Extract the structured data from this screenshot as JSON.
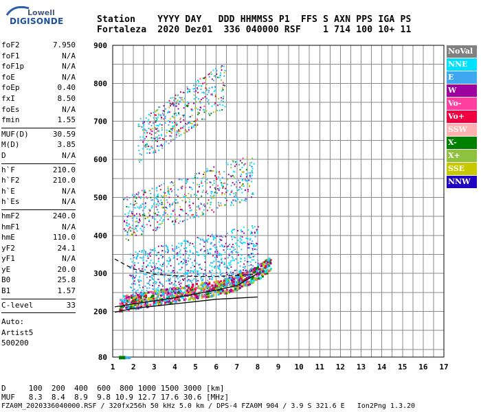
{
  "logo": {
    "line1": "Lowell",
    "line2": "DIGISONDE"
  },
  "header": {
    "labels": "Station    YYYY DAY   DDD HHMMSS P1  FFS S AXN PPS IGA PS",
    "values": "Fortaleza  2020 Dez01  336 040000 RSF    1 714 100 10+ 11"
  },
  "params": {
    "group1": [
      {
        "name": "foF2",
        "value": "7.950"
      },
      {
        "name": "foF1",
        "value": "N/A"
      },
      {
        "name": "foF1p",
        "value": "N/A"
      },
      {
        "name": "foE",
        "value": "N/A"
      },
      {
        "name": "foEp",
        "value": "0.40"
      },
      {
        "name": "fxI",
        "value": "8.50"
      },
      {
        "name": "foEs",
        "value": "N/A"
      },
      {
        "name": "fmin",
        "value": "1.55"
      }
    ],
    "group2": [
      {
        "name": "MUF(D)",
        "value": "30.59"
      },
      {
        "name": "M(D)",
        "value": "3.85"
      },
      {
        "name": "D",
        "value": "N/A"
      }
    ],
    "group3": [
      {
        "name": "h`F",
        "value": "210.0"
      },
      {
        "name": "h`F2",
        "value": "210.0"
      },
      {
        "name": "h`E",
        "value": "N/A"
      },
      {
        "name": "h`Es",
        "value": "N/A"
      }
    ],
    "group4": [
      {
        "name": "hmF2",
        "value": "240.0"
      },
      {
        "name": "hmF1",
        "value": "N/A"
      },
      {
        "name": "hmE",
        "value": "110.0"
      },
      {
        "name": "yF2",
        "value": "24.1"
      },
      {
        "name": "yF1",
        "value": "N/A"
      },
      {
        "name": "yE",
        "value": "20.0"
      },
      {
        "name": "B0",
        "value": "25.8"
      },
      {
        "name": "B1",
        "value": "1.57"
      }
    ],
    "clevel": {
      "name": "C-level",
      "value": "33"
    },
    "auto": [
      "Auto:",
      "Artist5",
      "500200"
    ]
  },
  "legend": [
    {
      "label": "NoVal",
      "color": "#808080"
    },
    {
      "label": "NNE",
      "color": "#00e0ff"
    },
    {
      "label": "E",
      "color": "#40a8f0"
    },
    {
      "label": "W",
      "color": "#a000a0"
    },
    {
      "label": "Vo-",
      "color": "#ff40a0"
    },
    {
      "label": "Vo+",
      "color": "#f00040"
    },
    {
      "label": "SSW",
      "color": "#ffb0b0"
    },
    {
      "label": "X-",
      "color": "#008000"
    },
    {
      "label": "X+",
      "color": "#90c040"
    },
    {
      "label": "SSE",
      "color": "#c8c800"
    },
    {
      "label": "NNW",
      "color": "#2000c0"
    }
  ],
  "chart_data": {
    "type": "scatter",
    "xlim": [
      1,
      17
    ],
    "ylim": [
      80,
      900
    ],
    "x_ticks": [
      "1",
      "2",
      "3",
      "4",
      "5",
      "6",
      "7",
      "8",
      "9",
      "10",
      "11",
      "12",
      "13",
      "14",
      "15",
      "16",
      "17"
    ],
    "y_ticks": [
      "80",
      "200",
      "300",
      "400",
      "500",
      "600",
      "700",
      "800",
      "900"
    ],
    "y_tick_values": [
      80,
      200,
      300,
      400,
      500,
      600,
      700,
      800,
      900
    ],
    "grid": true,
    "trace_series": [
      {
        "name": "profile-lower",
        "values": [
          [
            1.1,
            198
          ],
          [
            2,
            208
          ],
          [
            3,
            214
          ],
          [
            4,
            220
          ],
          [
            5,
            226
          ],
          [
            6,
            232
          ],
          [
            7,
            235
          ],
          [
            8,
            238
          ]
        ]
      },
      {
        "name": "profile-upper",
        "values": [
          [
            1.1,
            212
          ],
          [
            2,
            220
          ],
          [
            3,
            228
          ],
          [
            4,
            236
          ],
          [
            5,
            246
          ],
          [
            6,
            256
          ],
          [
            7,
            268
          ],
          [
            8,
            300
          ]
        ]
      },
      {
        "name": "dashed",
        "values": [
          [
            1.1,
            338
          ],
          [
            1.5,
            326
          ],
          [
            2,
            312
          ],
          [
            3,
            298
          ],
          [
            4,
            294
          ],
          [
            5,
            292
          ],
          [
            6,
            292
          ],
          [
            7,
            295
          ],
          [
            8,
            298
          ]
        ]
      }
    ]
  },
  "bottom": {
    "line1": "D     100  200  400  600  800 1000 1500 3000 [km]",
    "line2": "MUF   8.3  8.4  8.9  9.8 10.9 12.7 17.6 30.6 [MHz]",
    "line3": "FZA0M_2020336040000.RSF / 320fx256h 50 kHz 5.0 km / DPS-4 FZA0M 904 / 3.9 S 321.6 E   Ion2Png 1.3.20"
  }
}
